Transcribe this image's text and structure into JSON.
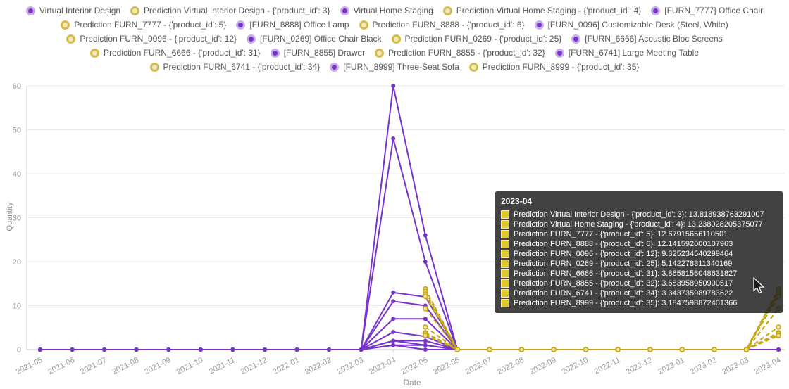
{
  "colors": {
    "actual": "#7733cc",
    "actual_ring": "#c9aeea",
    "prediction": "#c5a714",
    "prediction_ring": "#d6bd4a",
    "prediction_point_fill": "#ecdf9f",
    "grid": "#e9e9e9",
    "axis": "#cccccc",
    "tick_text": "#999999"
  },
  "axes": {
    "y_title": "Quantity",
    "x_title": "Date"
  },
  "legend": {
    "items": [
      {
        "label": "Virtual Interior Design",
        "type": "actual"
      },
      {
        "label": "Prediction Virtual Interior Design - {'product_id': 3}",
        "type": "prediction"
      },
      {
        "label": "Virtual Home Staging",
        "type": "actual"
      },
      {
        "label": "Prediction Virtual Home Staging - {'product_id': 4}",
        "type": "prediction"
      },
      {
        "label": "[FURN_7777] Office Chair",
        "type": "actual"
      },
      {
        "label": "Prediction FURN_7777 - {'product_id': 5}",
        "type": "prediction"
      },
      {
        "label": "[FURN_8888] Office Lamp",
        "type": "actual"
      },
      {
        "label": "Prediction FURN_8888 - {'product_id': 6}",
        "type": "prediction"
      },
      {
        "label": "[FURN_0096] Customizable Desk (Steel, White)",
        "type": "actual"
      },
      {
        "label": "Prediction FURN_0096 - {'product_id': 12}",
        "type": "prediction"
      },
      {
        "label": "[FURN_0269] Office Chair Black",
        "type": "actual"
      },
      {
        "label": "Prediction FURN_0269 - {'product_id': 25}",
        "type": "prediction"
      },
      {
        "label": "[FURN_6666] Acoustic Bloc Screens",
        "type": "actual"
      },
      {
        "label": "Prediction FURN_6666 - {'product_id': 31}",
        "type": "prediction"
      },
      {
        "label": "[FURN_8855] Drawer",
        "type": "actual"
      },
      {
        "label": "Prediction FURN_8855 - {'product_id': 32}",
        "type": "prediction"
      },
      {
        "label": "[FURN_6741] Large Meeting Table",
        "type": "actual"
      },
      {
        "label": "Prediction FURN_6741 - {'product_id': 34}",
        "type": "prediction"
      },
      {
        "label": "[FURN_8999] Three-Seat Sofa",
        "type": "actual"
      },
      {
        "label": "Prediction FURN_8999 - {'product_id': 35}",
        "type": "prediction"
      }
    ]
  },
  "tooltip": {
    "title": "2023-04",
    "rows": [
      {
        "label": "Prediction Virtual Interior Design - {'product_id': 3}",
        "value": "13.818938763291007"
      },
      {
        "label": "Prediction Virtual Home Staging - {'product_id': 4}",
        "value": "13.238028205375077"
      },
      {
        "label": "Prediction FURN_7777 - {'product_id': 5}",
        "value": "12.67915656110501"
      },
      {
        "label": "Prediction FURN_8888 - {'product_id': 6}",
        "value": "12.141592000107963"
      },
      {
        "label": "Prediction FURN_0096 - {'product_id': 12}",
        "value": "9.325234540299464"
      },
      {
        "label": "Prediction FURN_0269 - {'product_id': 25}",
        "value": "5.142278311340169"
      },
      {
        "label": "Prediction FURN_6666 - {'product_id': 31}",
        "value": "3.8658156048631827"
      },
      {
        "label": "Prediction FURN_8855 - {'product_id': 32}",
        "value": "3.683958950900517"
      },
      {
        "label": "Prediction FURN_6741 - {'product_id': 34}",
        "value": "3.343735989783622"
      },
      {
        "label": "Prediction FURN_8999 - {'product_id': 35}",
        "value": "3.1847598872401366"
      }
    ]
  },
  "chart_data": {
    "type": "line",
    "title": "",
    "xlabel": "Date",
    "ylabel": "Quantity",
    "ylim": [
      0,
      60
    ],
    "yticks": [
      0,
      10,
      20,
      30,
      40,
      50,
      60
    ],
    "grid": true,
    "legend_position": "top",
    "x": [
      "2021-05",
      "2021-06",
      "2021-07",
      "2021-08",
      "2021-09",
      "2021-10",
      "2021-11",
      "2021-12",
      "2022-01",
      "2022-02",
      "2022-03",
      "2022-04",
      "2022-05",
      "2022-06",
      "2022-07",
      "2022-08",
      "2022-09",
      "2022-10",
      "2022-11",
      "2022-12",
      "2023-01",
      "2023-02",
      "2023-03",
      "2023-04"
    ],
    "series": [
      {
        "name": "Virtual Interior Design",
        "style": "solid",
        "color": "#7733cc",
        "values": [
          0,
          0,
          0,
          0,
          0,
          0,
          0,
          0,
          0,
          0,
          0,
          60,
          26,
          0,
          0,
          0,
          0,
          0,
          0,
          0,
          0,
          0,
          0,
          0
        ]
      },
      {
        "name": "Prediction Virtual Interior Design - {'product_id': 3}",
        "style": "dashed",
        "color": "#c5a714",
        "values": [
          null,
          null,
          null,
          null,
          null,
          null,
          null,
          null,
          null,
          null,
          null,
          null,
          13.82,
          0,
          0,
          0,
          0,
          0,
          0,
          0,
          0,
          0,
          0,
          13.818938763291007
        ]
      },
      {
        "name": "Virtual Home Staging",
        "style": "solid",
        "color": "#7733cc",
        "values": [
          0,
          0,
          0,
          0,
          0,
          0,
          0,
          0,
          0,
          0,
          0,
          48,
          20,
          0,
          0,
          0,
          0,
          0,
          0,
          0,
          0,
          0,
          0,
          0
        ]
      },
      {
        "name": "Prediction Virtual Home Staging - {'product_id': 4}",
        "style": "dashed",
        "color": "#c5a714",
        "values": [
          null,
          null,
          null,
          null,
          null,
          null,
          null,
          null,
          null,
          null,
          null,
          null,
          13.24,
          0,
          0,
          0,
          0,
          0,
          0,
          0,
          0,
          0,
          0,
          13.238028205375077
        ]
      },
      {
        "name": "[FURN_7777] Office Chair",
        "style": "solid",
        "color": "#7733cc",
        "values": [
          0,
          0,
          0,
          0,
          0,
          0,
          0,
          0,
          0,
          0,
          0,
          13,
          12,
          0,
          0,
          0,
          0,
          0,
          0,
          0,
          0,
          0,
          0,
          0
        ]
      },
      {
        "name": "Prediction FURN_7777 - {'product_id': 5}",
        "style": "dashed",
        "color": "#c5a714",
        "values": [
          null,
          null,
          null,
          null,
          null,
          null,
          null,
          null,
          null,
          null,
          null,
          null,
          12.68,
          0,
          0,
          0,
          0,
          0,
          0,
          0,
          0,
          0,
          0,
          12.67915656110501
        ]
      },
      {
        "name": "[FURN_8888] Office Lamp",
        "style": "solid",
        "color": "#7733cc",
        "values": [
          0,
          0,
          0,
          0,
          0,
          0,
          0,
          0,
          0,
          0,
          0,
          11,
          10,
          0,
          0,
          0,
          0,
          0,
          0,
          0,
          0,
          0,
          0,
          0
        ]
      },
      {
        "name": "Prediction FURN_8888 - {'product_id': 6}",
        "style": "dashed",
        "color": "#c5a714",
        "values": [
          null,
          null,
          null,
          null,
          null,
          null,
          null,
          null,
          null,
          null,
          null,
          null,
          12.14,
          0,
          0,
          0,
          0,
          0,
          0,
          0,
          0,
          0,
          0,
          12.141592000107963
        ]
      },
      {
        "name": "[FURN_0096] Customizable Desk (Steel, White)",
        "style": "solid",
        "color": "#7733cc",
        "values": [
          0,
          0,
          0,
          0,
          0,
          0,
          0,
          0,
          0,
          0,
          0,
          7,
          7,
          0,
          0,
          0,
          0,
          0,
          0,
          0,
          0,
          0,
          0,
          0
        ]
      },
      {
        "name": "Prediction FURN_0096 - {'product_id': 12}",
        "style": "dashed",
        "color": "#c5a714",
        "values": [
          null,
          null,
          null,
          null,
          null,
          null,
          null,
          null,
          null,
          null,
          null,
          null,
          9.33,
          0,
          0,
          0,
          0,
          0,
          0,
          0,
          0,
          0,
          0,
          9.325234540299464
        ]
      },
      {
        "name": "[FURN_0269] Office Chair Black",
        "style": "solid",
        "color": "#7733cc",
        "values": [
          0,
          0,
          0,
          0,
          0,
          0,
          0,
          0,
          0,
          0,
          0,
          4,
          3,
          0,
          0,
          0,
          0,
          0,
          0,
          0,
          0,
          0,
          0,
          0
        ]
      },
      {
        "name": "Prediction FURN_0269 - {'product_id': 25}",
        "style": "dashed",
        "color": "#c5a714",
        "values": [
          null,
          null,
          null,
          null,
          null,
          null,
          null,
          null,
          null,
          null,
          null,
          null,
          5.14,
          0,
          0,
          0,
          0,
          0,
          0,
          0,
          0,
          0,
          0,
          5.142278311340169
        ]
      },
      {
        "name": "[FURN_6666] Acoustic Bloc Screens",
        "style": "solid",
        "color": "#7733cc",
        "values": [
          0,
          0,
          0,
          0,
          0,
          0,
          0,
          0,
          0,
          0,
          0,
          2,
          2,
          0,
          0,
          0,
          0,
          0,
          0,
          0,
          0,
          0,
          0,
          0
        ]
      },
      {
        "name": "Prediction FURN_6666 - {'product_id': 31}",
        "style": "dashed",
        "color": "#c5a714",
        "values": [
          null,
          null,
          null,
          null,
          null,
          null,
          null,
          null,
          null,
          null,
          null,
          null,
          3.87,
          0,
          0,
          0,
          0,
          0,
          0,
          0,
          0,
          0,
          0,
          3.8658156048631827
        ]
      },
      {
        "name": "[FURN_8855] Drawer",
        "style": "solid",
        "color": "#7733cc",
        "values": [
          0,
          0,
          0,
          0,
          0,
          0,
          0,
          0,
          0,
          0,
          0,
          2,
          1,
          0,
          0,
          0,
          0,
          0,
          0,
          0,
          0,
          0,
          0,
          0
        ]
      },
      {
        "name": "Prediction FURN_8855 - {'product_id': 32}",
        "style": "dashed",
        "color": "#c5a714",
        "values": [
          null,
          null,
          null,
          null,
          null,
          null,
          null,
          null,
          null,
          null,
          null,
          null,
          3.68,
          0,
          0,
          0,
          0,
          0,
          0,
          0,
          0,
          0,
          0,
          3.683958950900517
        ]
      },
      {
        "name": "[FURN_6741] Large Meeting Table",
        "style": "solid",
        "color": "#7733cc",
        "values": [
          0,
          0,
          0,
          0,
          0,
          0,
          0,
          0,
          0,
          0,
          0,
          1,
          1,
          0,
          0,
          0,
          0,
          0,
          0,
          0,
          0,
          0,
          0,
          0
        ]
      },
      {
        "name": "Prediction FURN_6741 - {'product_id': 34}",
        "style": "dashed",
        "color": "#c5a714",
        "values": [
          null,
          null,
          null,
          null,
          null,
          null,
          null,
          null,
          null,
          null,
          null,
          null,
          3.34,
          0,
          0,
          0,
          0,
          0,
          0,
          0,
          0,
          0,
          0,
          3.343735989783622
        ]
      },
      {
        "name": "[FURN_8999] Three-Seat Sofa",
        "style": "solid",
        "color": "#7733cc",
        "values": [
          0,
          0,
          0,
          0,
          0,
          0,
          0,
          0,
          0,
          0,
          0,
          1,
          0,
          0,
          0,
          0,
          0,
          0,
          0,
          0,
          0,
          0,
          0,
          0
        ]
      },
      {
        "name": "Prediction FURN_8999 - {'product_id': 35}",
        "style": "dashed",
        "color": "#c5a714",
        "values": [
          null,
          null,
          null,
          null,
          null,
          null,
          null,
          null,
          null,
          null,
          null,
          null,
          3.18,
          0,
          0,
          0,
          0,
          0,
          0,
          0,
          0,
          0,
          0,
          3.1847598872401366
        ]
      }
    ]
  }
}
